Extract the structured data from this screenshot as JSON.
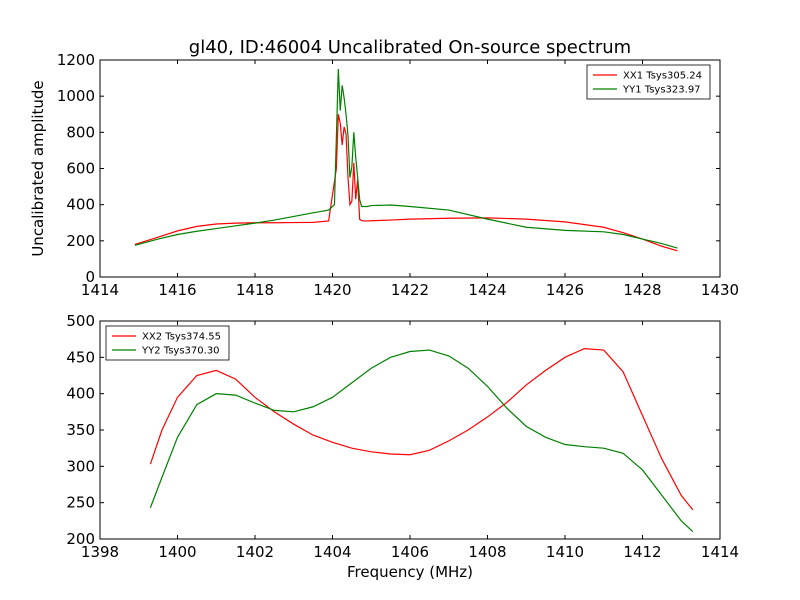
{
  "chart_data": [
    {
      "type": "line",
      "title": "gl40, ID:46004 Uncalibrated On-source spectrum",
      "xlabel": "",
      "ylabel": "Uncalibrated amplitude",
      "xlim": [
        1414,
        1430
      ],
      "ylim": [
        0,
        1200
      ],
      "xticks": [
        "1414",
        "1416",
        "1418",
        "1420",
        "1422",
        "1424",
        "1426",
        "1428",
        "1430"
      ],
      "yticks": [
        "0",
        "200",
        "400",
        "600",
        "800",
        "1000",
        "1200"
      ],
      "grid": false,
      "legend_position": "top-right",
      "series": [
        {
          "name": "XX1 Tsys305.24",
          "color": "#ff0000",
          "x": [
            1414.9,
            1415.5,
            1416,
            1416.5,
            1417,
            1417.5,
            1418,
            1418.5,
            1419,
            1419.5,
            1419.9,
            1420.1,
            1420.15,
            1420.2,
            1420.25,
            1420.3,
            1420.35,
            1420.4,
            1420.45,
            1420.5,
            1420.55,
            1420.6,
            1420.65,
            1420.7,
            1420.75,
            1420.8,
            1420.9,
            1421,
            1421.5,
            1422,
            1423,
            1424,
            1425,
            1426,
            1427,
            1427.5,
            1428,
            1428.5,
            1428.9
          ],
          "y": [
            180,
            220,
            255,
            280,
            293,
            298,
            300,
            300,
            301,
            302,
            310,
            600,
            900,
            850,
            730,
            830,
            790,
            550,
            400,
            420,
            630,
            430,
            540,
            320,
            312,
            310,
            310,
            311,
            315,
            320,
            325,
            327,
            320,
            305,
            275,
            245,
            210,
            170,
            145
          ]
        },
        {
          "name": "YY1 Tsys323.97",
          "color": "#008000",
          "x": [
            1414.9,
            1415.5,
            1416,
            1416.5,
            1417,
            1417.5,
            1418,
            1418.5,
            1419,
            1419.5,
            1419.9,
            1420.05,
            1420.15,
            1420.2,
            1420.25,
            1420.3,
            1420.35,
            1420.4,
            1420.45,
            1420.5,
            1420.55,
            1420.6,
            1420.65,
            1420.7,
            1420.75,
            1420.8,
            1420.9,
            1421,
            1421.5,
            1422,
            1423,
            1424,
            1425,
            1426,
            1427,
            1427.5,
            1428,
            1428.5,
            1428.9
          ],
          "y": [
            175,
            210,
            235,
            253,
            268,
            283,
            298,
            315,
            335,
            355,
            370,
            400,
            1150,
            920,
            1060,
            990,
            900,
            780,
            550,
            610,
            800,
            660,
            550,
            430,
            390,
            390,
            390,
            395,
            398,
            390,
            370,
            320,
            275,
            258,
            250,
            235,
            210,
            185,
            160
          ]
        }
      ]
    },
    {
      "type": "line",
      "title": "",
      "xlabel": "Frequency (MHz)",
      "ylabel": "",
      "xlim": [
        1398,
        1414
      ],
      "ylim": [
        200,
        500
      ],
      "xticks": [
        "1398",
        "1400",
        "1402",
        "1404",
        "1406",
        "1408",
        "1410",
        "1412",
        "1414"
      ],
      "yticks": [
        "200",
        "250",
        "300",
        "350",
        "400",
        "450",
        "500"
      ],
      "grid": false,
      "legend_position": "top-left",
      "series": [
        {
          "name": "XX2 Tsys374.55",
          "color": "#ff0000",
          "x": [
            1399.3,
            1399.6,
            1400,
            1400.5,
            1401,
            1401.5,
            1402,
            1402.5,
            1403,
            1403.5,
            1404,
            1404.5,
            1405,
            1405.5,
            1406,
            1406.5,
            1407,
            1407.5,
            1408,
            1408.5,
            1409,
            1409.5,
            1410,
            1410.5,
            1411,
            1411.5,
            1412,
            1412.5,
            1413,
            1413.3
          ],
          "y": [
            303,
            350,
            395,
            425,
            432,
            420,
            395,
            375,
            358,
            343,
            333,
            325,
            320,
            317,
            316,
            322,
            335,
            350,
            368,
            388,
            412,
            432,
            450,
            462,
            460,
            430,
            370,
            310,
            260,
            240
          ]
        },
        {
          "name": "YY2 Tsys370.30",
          "color": "#008000",
          "x": [
            1399.3,
            1399.6,
            1400,
            1400.5,
            1401,
            1401.5,
            1402,
            1402.5,
            1403,
            1403.5,
            1404,
            1404.5,
            1405,
            1405.5,
            1406,
            1406.5,
            1407,
            1407.5,
            1408,
            1408.5,
            1409,
            1409.5,
            1410,
            1410.5,
            1411,
            1411.5,
            1412,
            1412.5,
            1413,
            1413.3
          ],
          "y": [
            243,
            285,
            340,
            385,
            400,
            398,
            387,
            377,
            375,
            382,
            395,
            415,
            435,
            450,
            458,
            460,
            452,
            435,
            410,
            380,
            355,
            340,
            330,
            327,
            325,
            318,
            295,
            260,
            225,
            210
          ]
        }
      ]
    }
  ]
}
